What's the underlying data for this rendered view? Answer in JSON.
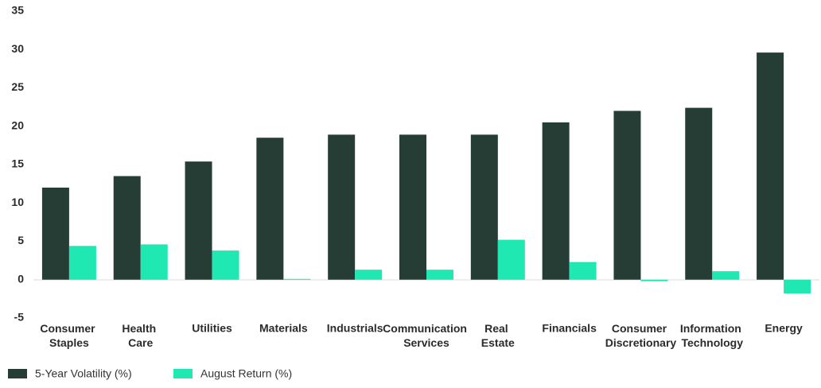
{
  "chart_data": {
    "type": "bar",
    "categories": [
      "Consumer Staples",
      "Health Care",
      "Utilities",
      "Materials",
      "Industrials",
      "Communication Services",
      "Real Estate",
      "Financials",
      "Consumer Discretionary",
      "Information Technology",
      "Energy"
    ],
    "series": [
      {
        "name": "5-Year Volatility (%)",
        "color": "#263d35",
        "values": [
          12,
          13.5,
          15.4,
          18.5,
          18.9,
          18.9,
          18.9,
          20.5,
          22,
          22.4,
          29.6
        ]
      },
      {
        "name": "August Return (%)",
        "color": "#1fe8b2",
        "values": [
          4.4,
          4.6,
          3.8,
          0.1,
          1.3,
          1.3,
          5.2,
          2.3,
          -0.2,
          1.1,
          -1.8
        ]
      }
    ],
    "ylim": [
      -5,
      35
    ],
    "yticks": [
      -5,
      0,
      5,
      10,
      15,
      20,
      25,
      30,
      35
    ],
    "grid": false
  }
}
